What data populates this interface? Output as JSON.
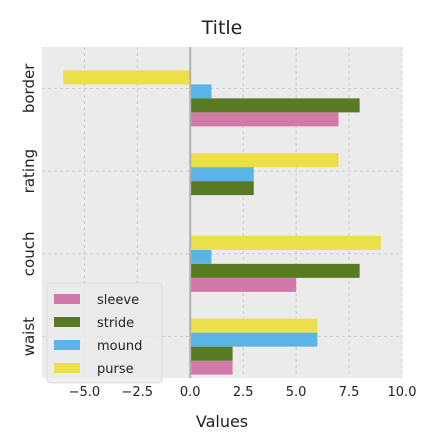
{
  "chart_data": {
    "type": "bar",
    "orientation": "horizontal",
    "title": "Title",
    "xlabel": "Values",
    "ylabel": "",
    "categories": [
      "border",
      "rating",
      "couch",
      "waist"
    ],
    "series": [
      {
        "name": "sleeve",
        "color": "#d17aa9",
        "values": [
          7,
          0,
          5,
          2
        ]
      },
      {
        "name": "stride",
        "color": "#587a23",
        "values": [
          8,
          3,
          8,
          2
        ]
      },
      {
        "name": "mound",
        "color": "#5ab4e6",
        "values": [
          1,
          3,
          1,
          6
        ]
      },
      {
        "name": "purse",
        "color": "#ebe04a",
        "values": [
          -6,
          7,
          9,
          6
        ]
      }
    ],
    "xlim": [
      -7,
      10
    ],
    "xticks": [
      -5.0,
      -2.5,
      0.0,
      2.5,
      5.0,
      7.5,
      10.0
    ],
    "xtick_labels": [
      "−5.0",
      "−2.5",
      "0.0",
      "2.5",
      "5.0",
      "7.5",
      "10.0"
    ],
    "grid": true,
    "legend_position": "lower-left",
    "background_color": "#ebebeb",
    "zero_line_color": "#b0b0b0"
  }
}
